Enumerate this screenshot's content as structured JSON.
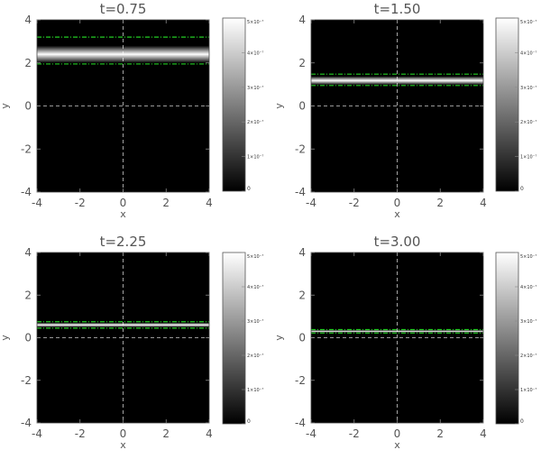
{
  "chart_data": [
    {
      "type": "heatmap",
      "title": "t=0.75",
      "xlabel": "x",
      "ylabel": "y",
      "xlim": [
        -4,
        4
      ],
      "ylim": [
        -4,
        4
      ],
      "x_ticks": [
        "-4",
        "-2",
        "0",
        "2",
        "4"
      ],
      "y_ticks": [
        "-4",
        "-2",
        "0",
        "2",
        "4"
      ],
      "band_center_y": 2.4,
      "band_halfwidth": 0.4,
      "contour_lines_y": [
        1.95,
        3.2
      ],
      "reference_lines": {
        "x": 0,
        "y": 0
      },
      "colorbar": {
        "min": 0,
        "max": 5e-07,
        "tick_labels": [
          "0",
          "1×10⁻⁷",
          "2×10⁻⁷",
          "3×10⁻⁷",
          "4×10⁻⁷",
          "5×10⁻⁷"
        ]
      },
      "colors": {
        "background": "#000000",
        "contour": "#22cc22",
        "reference": "#ffffff"
      }
    },
    {
      "type": "heatmap",
      "title": "t=1.50",
      "xlabel": "x",
      "ylabel": "y",
      "xlim": [
        -4,
        4
      ],
      "ylim": [
        -4,
        4
      ],
      "x_ticks": [
        "-4",
        "-2",
        "0",
        "2",
        "4"
      ],
      "y_ticks": [
        "-4",
        "-2",
        "0",
        "2",
        "4"
      ],
      "band_center_y": 1.18,
      "band_halfwidth": 0.2,
      "contour_lines_y": [
        0.95,
        1.48
      ],
      "reference_lines": {
        "x": 0,
        "y": 0
      },
      "colorbar": {
        "min": 0,
        "max": 5e-07,
        "tick_labels": [
          "0",
          "1×10⁻⁷",
          "2×10⁻⁷",
          "3×10⁻⁷",
          "4×10⁻⁷",
          "5×10⁻⁷"
        ]
      },
      "colors": {
        "background": "#000000",
        "contour": "#22cc22",
        "reference": "#ffffff"
      }
    },
    {
      "type": "heatmap",
      "title": "t=2.25",
      "xlabel": "x",
      "ylabel": "y",
      "xlim": [
        -4,
        4
      ],
      "ylim": [
        -4,
        4
      ],
      "x_ticks": [
        "-4",
        "-2",
        "0",
        "2",
        "4"
      ],
      "y_ticks": [
        "-4",
        "-2",
        "0",
        "2",
        "4"
      ],
      "band_center_y": 0.6,
      "band_halfwidth": 0.11,
      "contour_lines_y": [
        0.45,
        0.75
      ],
      "reference_lines": {
        "x": 0,
        "y": 0
      },
      "colorbar": {
        "min": 0,
        "max": 5e-07,
        "tick_labels": [
          "0",
          "1×10⁻⁷",
          "2×10⁻⁷",
          "3×10⁻⁷",
          "4×10⁻⁷",
          "5×10⁻⁷"
        ]
      },
      "colors": {
        "background": "#000000",
        "contour": "#22cc22",
        "reference": "#ffffff"
      }
    },
    {
      "type": "heatmap",
      "title": "t=3.00",
      "xlabel": "x",
      "ylabel": "y",
      "xlim": [
        -4,
        4
      ],
      "ylim": [
        -4,
        4
      ],
      "x_ticks": [
        "-4",
        "-2",
        "0",
        "2",
        "4"
      ],
      "y_ticks": [
        "-4",
        "-2",
        "0",
        "2",
        "4"
      ],
      "band_center_y": 0.3,
      "band_halfwidth": 0.06,
      "contour_lines_y": [
        0.22,
        0.38
      ],
      "reference_lines": {
        "x": 0,
        "y": 0
      },
      "colorbar": {
        "min": 0,
        "max": 5e-07,
        "tick_labels": [
          "0",
          "1×10⁻⁷",
          "2×10⁻⁷",
          "3×10⁻⁷",
          "4×10⁻⁷",
          "5×10⁻⁷"
        ]
      },
      "colors": {
        "background": "#000000",
        "contour": "#22cc22",
        "reference": "#ffffff"
      }
    }
  ]
}
